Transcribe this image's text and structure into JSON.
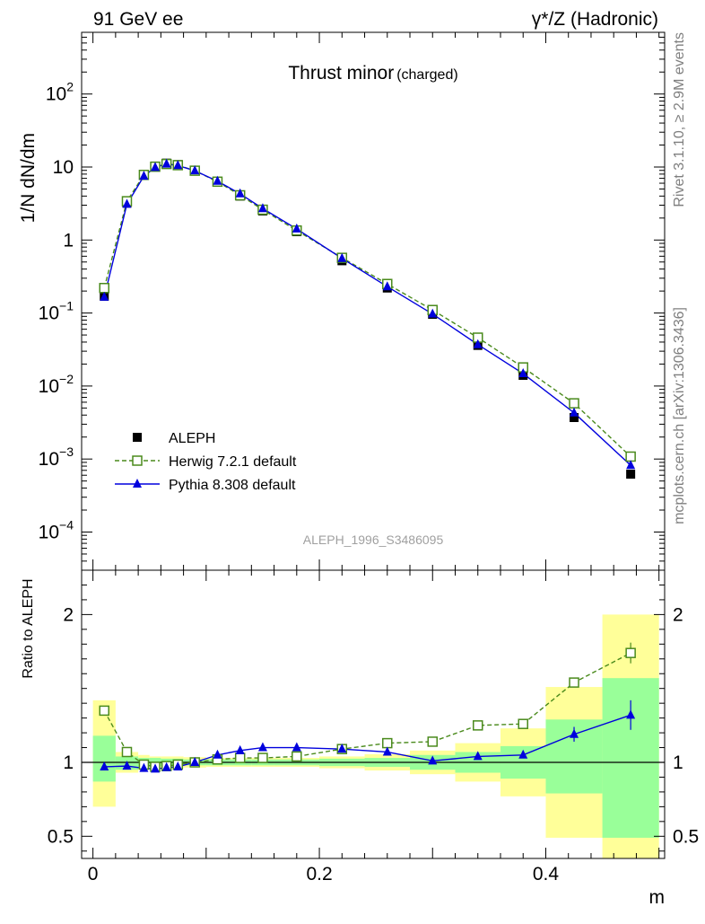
{
  "header": {
    "left": "91 GeV ee",
    "right": "γ*/Z (Hadronic)"
  },
  "side_labels": {
    "top": "Rivet 3.1.10, ≥ 2.9M events",
    "bottom": "mcplots.cern.ch [arXiv:1306.3436]"
  },
  "chart_data": [
    {
      "type": "scatter",
      "title": "Thrust minor",
      "title_sub": "(charged)",
      "ylabel": "1/N dN/dm",
      "xlabel": "m",
      "yscale": "log",
      "ylim": [
        3e-05,
        700
      ],
      "xlim": [
        -0.01,
        0.505
      ],
      "watermark": "ALEPH_1996_S3486095",
      "legend_position": "lower-left",
      "yticks": [
        {
          "v": 0.0001,
          "base": "10",
          "exp": "−4"
        },
        {
          "v": 0.001,
          "base": "10",
          "exp": "−3"
        },
        {
          "v": 0.01,
          "base": "10",
          "exp": "−2"
        },
        {
          "v": 0.1,
          "base": "10",
          "exp": "−1"
        },
        {
          "v": 1,
          "base": "1",
          "exp": ""
        },
        {
          "v": 10,
          "base": "10",
          "exp": ""
        },
        {
          "v": 100,
          "base": "10",
          "exp": "2"
        }
      ],
      "series": [
        {
          "name": "ALEPH",
          "color": "#000000",
          "marker": "filled-square",
          "x": [
            0.01,
            0.03,
            0.045,
            0.055,
            0.065,
            0.075,
            0.09,
            0.11,
            0.13,
            0.15,
            0.18,
            0.22,
            0.26,
            0.3,
            0.34,
            0.38,
            0.425,
            0.475
          ],
          "y": [
            0.17,
            3.2,
            7.8,
            10.3,
            11.3,
            10.8,
            8.9,
            6.2,
            4.0,
            2.5,
            1.3,
            0.52,
            0.22,
            0.096,
            0.036,
            0.014,
            0.0037,
            0.00062
          ]
        },
        {
          "name": "Herwig 7.2.1 default",
          "color": "#4a8a1c",
          "marker": "open-square",
          "line": "dashed",
          "x": [
            0.01,
            0.03,
            0.045,
            0.055,
            0.065,
            0.075,
            0.09,
            0.11,
            0.13,
            0.15,
            0.18,
            0.22,
            0.26,
            0.3,
            0.34,
            0.38,
            0.425,
            0.475
          ],
          "y": [
            0.22,
            3.4,
            7.8,
            10.1,
            11.0,
            10.6,
            8.9,
            6.3,
            4.1,
            2.6,
            1.35,
            0.57,
            0.25,
            0.11,
            0.046,
            0.018,
            0.0058,
            0.00108
          ]
        },
        {
          "name": "Pythia 8.308 default",
          "color": "#0000dd",
          "marker": "filled-triangle",
          "line": "solid",
          "x": [
            0.01,
            0.03,
            0.045,
            0.055,
            0.065,
            0.075,
            0.09,
            0.11,
            0.13,
            0.15,
            0.18,
            0.22,
            0.26,
            0.3,
            0.34,
            0.38,
            0.425,
            0.475
          ],
          "y": [
            0.165,
            3.1,
            7.5,
            9.9,
            11.0,
            10.5,
            8.9,
            6.4,
            4.3,
            2.7,
            1.42,
            0.56,
            0.23,
            0.097,
            0.037,
            0.0148,
            0.0043,
            0.00082
          ]
        }
      ]
    },
    {
      "type": "line",
      "ylabel": "Ratio to ALEPH",
      "xlabel": "m",
      "ylim": [
        0.35,
        2.3
      ],
      "xlim": [
        -0.01,
        0.505
      ],
      "reference": 1,
      "yticks": [
        {
          "v": 0.5,
          "label": "0.5"
        },
        {
          "v": 1,
          "label": "1"
        },
        {
          "v": 2,
          "label": "2"
        }
      ],
      "xticks": [
        {
          "v": 0,
          "label": "0"
        },
        {
          "v": 0.2,
          "label": "0.2"
        },
        {
          "v": 0.4,
          "label": "0.4"
        }
      ],
      "bands": {
        "edges": [
          0,
          0.02,
          0.04,
          0.05,
          0.06,
          0.07,
          0.08,
          0.1,
          0.12,
          0.14,
          0.16,
          0.2,
          0.24,
          0.28,
          0.32,
          0.36,
          0.4,
          0.45,
          0.5
        ],
        "outer": [
          [
            0.7,
            1.42
          ],
          [
            0.93,
            1.07
          ],
          [
            0.95,
            1.05
          ],
          [
            0.96,
            1.04
          ],
          [
            0.96,
            1.04
          ],
          [
            0.96,
            1.04
          ],
          [
            0.965,
            1.035
          ],
          [
            0.97,
            1.03
          ],
          [
            0.97,
            1.03
          ],
          [
            0.97,
            1.03
          ],
          [
            0.97,
            1.03
          ],
          [
            0.96,
            1.04
          ],
          [
            0.945,
            1.055
          ],
          [
            0.92,
            1.08
          ],
          [
            0.87,
            1.13
          ],
          [
            0.77,
            1.23
          ],
          [
            0.49,
            1.51
          ],
          [
            0.35,
            2.0
          ]
        ],
        "inner": [
          [
            0.87,
            1.18
          ],
          [
            0.95,
            1.04
          ],
          [
            0.97,
            1.03
          ],
          [
            0.97,
            1.03
          ],
          [
            0.975,
            1.025
          ],
          [
            0.975,
            1.025
          ],
          [
            0.98,
            1.02
          ],
          [
            0.98,
            1.02
          ],
          [
            0.98,
            1.02
          ],
          [
            0.98,
            1.02
          ],
          [
            0.98,
            1.02
          ],
          [
            0.975,
            1.025
          ],
          [
            0.97,
            1.03
          ],
          [
            0.95,
            1.05
          ],
          [
            0.93,
            1.07
          ],
          [
            0.89,
            1.11
          ],
          [
            0.79,
            1.29
          ],
          [
            0.49,
            1.57
          ]
        ],
        "outer_color": "#ffff99",
        "inner_color": "#99ff99"
      },
      "series": [
        {
          "name": "Herwig 7.2.1 default",
          "color": "#4a8a1c",
          "marker": "open-square",
          "line": "dashed",
          "x": [
            0.01,
            0.03,
            0.045,
            0.055,
            0.065,
            0.075,
            0.09,
            0.11,
            0.13,
            0.15,
            0.18,
            0.22,
            0.26,
            0.3,
            0.34,
            0.38,
            0.425,
            0.475
          ],
          "y": [
            1.35,
            1.07,
            0.985,
            0.97,
            0.975,
            0.985,
            1.0,
            1.02,
            1.03,
            1.03,
            1.04,
            1.09,
            1.13,
            1.14,
            1.25,
            1.26,
            1.54,
            1.74
          ],
          "err": [
            0,
            0,
            0,
            0,
            0,
            0,
            0,
            0,
            0,
            0,
            0,
            0,
            0,
            0,
            0,
            0,
            0.03,
            0.07
          ]
        },
        {
          "name": "Pythia 8.308 default",
          "color": "#0000dd",
          "marker": "filled-triangle",
          "line": "solid",
          "x": [
            0.01,
            0.03,
            0.045,
            0.055,
            0.065,
            0.075,
            0.09,
            0.11,
            0.13,
            0.15,
            0.18,
            0.22,
            0.26,
            0.3,
            0.34,
            0.38,
            0.425,
            0.475
          ],
          "y": [
            0.97,
            0.975,
            0.96,
            0.955,
            0.965,
            0.97,
            1.0,
            1.05,
            1.08,
            1.1,
            1.1,
            1.09,
            1.07,
            1.01,
            1.04,
            1.05,
            1.19,
            1.32
          ],
          "err": [
            0,
            0,
            0,
            0,
            0,
            0,
            0,
            0,
            0,
            0,
            0,
            0,
            0,
            0,
            0,
            0,
            0.05,
            0.1
          ]
        }
      ]
    }
  ]
}
